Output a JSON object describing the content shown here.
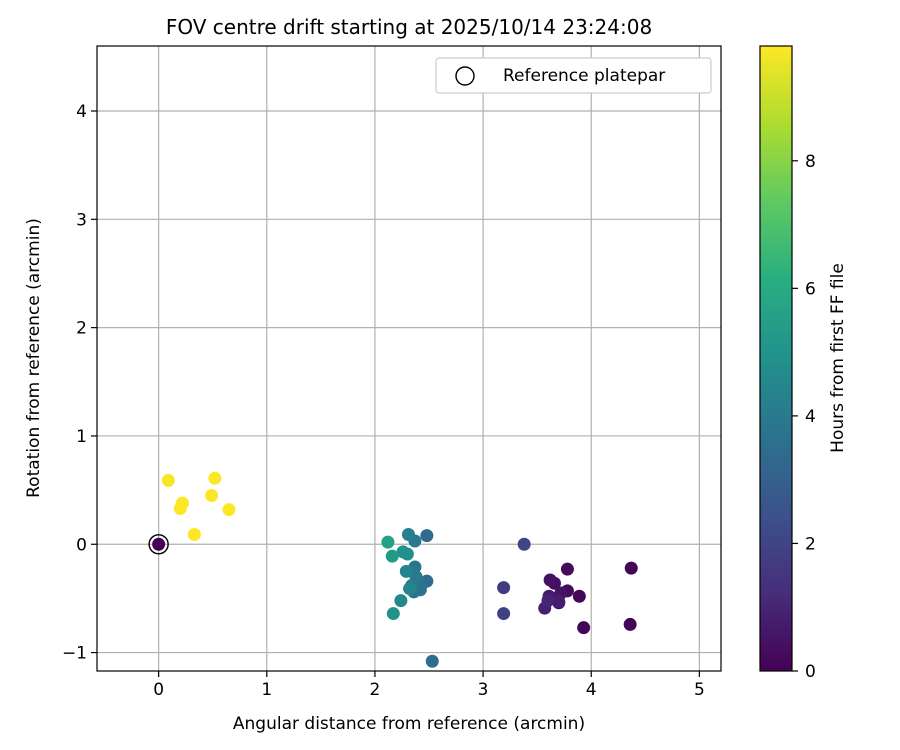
{
  "chart_data": {
    "type": "scatter",
    "title": "FOV centre drift starting at 2025/10/14 23:24:08",
    "xlabel": "Angular distance from reference (arcmin)",
    "ylabel": "Rotation from reference (arcmin)",
    "xlim": [
      -0.57,
      5.2
    ],
    "ylim": [
      -1.17,
      4.6
    ],
    "xticks": [
      0,
      1,
      2,
      3,
      4,
      5
    ],
    "yticks": [
      -1,
      0,
      1,
      2,
      3,
      4
    ],
    "grid": true,
    "legend": {
      "position": "top-right",
      "entries": [
        "Reference platepar"
      ]
    },
    "reference_point": {
      "x": 0,
      "y": 0,
      "label": "Reference platepar"
    },
    "colorbar": {
      "label": "Hours from first FF file",
      "colormap": "viridis",
      "range": [
        0,
        9.8
      ],
      "ticks": [
        0,
        2,
        4,
        6,
        8
      ]
    },
    "points": [
      {
        "x": 0.0,
        "y": 0.0,
        "c": 0.0
      },
      {
        "x": 4.37,
        "y": -0.22,
        "c": 0.1
      },
      {
        "x": 4.36,
        "y": -0.74,
        "c": 0.1
      },
      {
        "x": 3.93,
        "y": -0.77,
        "c": 0.15
      },
      {
        "x": 3.89,
        "y": -0.48,
        "c": 0.2
      },
      {
        "x": 3.78,
        "y": -0.23,
        "c": 0.25
      },
      {
        "x": 3.78,
        "y": -0.43,
        "c": 0.3
      },
      {
        "x": 3.7,
        "y": -0.54,
        "c": 0.35
      },
      {
        "x": 3.66,
        "y": -0.36,
        "c": 0.4
      },
      {
        "x": 3.62,
        "y": -0.33,
        "c": 0.45
      },
      {
        "x": 3.72,
        "y": -0.45,
        "c": 0.5
      },
      {
        "x": 3.66,
        "y": -0.5,
        "c": 0.6
      },
      {
        "x": 3.61,
        "y": -0.48,
        "c": 0.7
      },
      {
        "x": 3.7,
        "y": -0.53,
        "c": 0.8
      },
      {
        "x": 3.57,
        "y": -0.59,
        "c": 0.9
      },
      {
        "x": 3.6,
        "y": -0.52,
        "c": 1.0
      },
      {
        "x": 3.19,
        "y": -0.4,
        "c": 1.7
      },
      {
        "x": 3.19,
        "y": -0.64,
        "c": 1.9
      },
      {
        "x": 3.38,
        "y": 0.0,
        "c": 2.1
      },
      {
        "x": 2.53,
        "y": -1.08,
        "c": 3.5
      },
      {
        "x": 2.48,
        "y": 0.08,
        "c": 3.4
      },
      {
        "x": 2.48,
        "y": -0.34,
        "c": 3.5
      },
      {
        "x": 2.44,
        "y": -0.36,
        "c": 3.6
      },
      {
        "x": 2.42,
        "y": -0.42,
        "c": 3.7
      },
      {
        "x": 2.36,
        "y": -0.44,
        "c": 3.8
      },
      {
        "x": 2.37,
        "y": -0.21,
        "c": 3.8
      },
      {
        "x": 2.37,
        "y": 0.03,
        "c": 3.9
      },
      {
        "x": 2.38,
        "y": -0.3,
        "c": 4.0
      },
      {
        "x": 2.34,
        "y": -0.38,
        "c": 4.1
      },
      {
        "x": 2.31,
        "y": 0.09,
        "c": 4.2
      },
      {
        "x": 2.29,
        "y": -0.25,
        "c": 4.4
      },
      {
        "x": 2.32,
        "y": -0.41,
        "c": 4.5
      },
      {
        "x": 2.24,
        "y": -0.52,
        "c": 4.6
      },
      {
        "x": 2.3,
        "y": -0.09,
        "c": 4.8
      },
      {
        "x": 2.26,
        "y": -0.07,
        "c": 4.9
      },
      {
        "x": 2.17,
        "y": -0.64,
        "c": 5.0
      },
      {
        "x": 2.16,
        "y": -0.11,
        "c": 5.3
      },
      {
        "x": 2.12,
        "y": 0.02,
        "c": 5.6
      },
      {
        "x": 0.09,
        "y": 0.59,
        "c": 9.7
      },
      {
        "x": 0.52,
        "y": 0.61,
        "c": 9.75
      },
      {
        "x": 0.49,
        "y": 0.45,
        "c": 9.75
      },
      {
        "x": 0.22,
        "y": 0.38,
        "c": 9.75
      },
      {
        "x": 0.2,
        "y": 0.33,
        "c": 9.8
      },
      {
        "x": 0.65,
        "y": 0.32,
        "c": 9.8
      },
      {
        "x": 0.33,
        "y": 0.09,
        "c": 9.8
      }
    ]
  }
}
